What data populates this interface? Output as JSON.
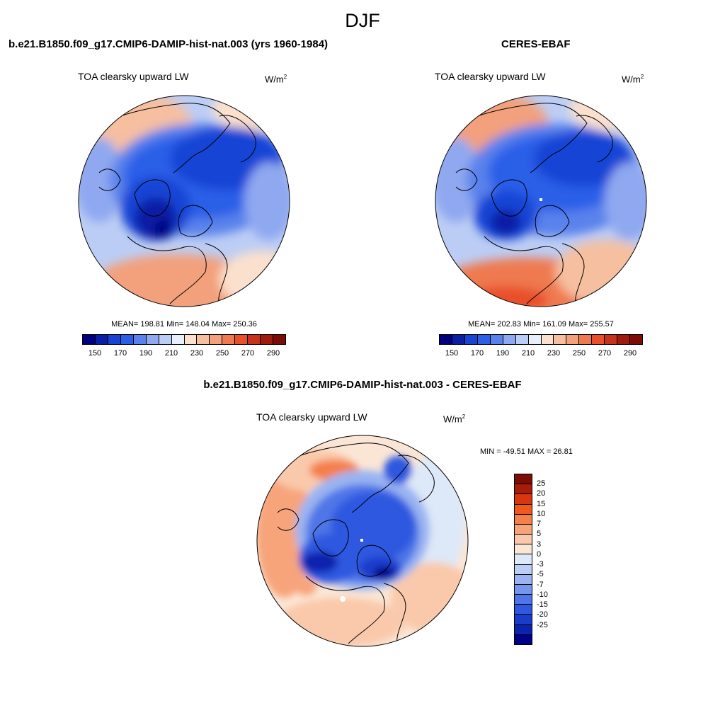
{
  "figure": {
    "title": "DJF"
  },
  "panels": {
    "model": {
      "title": "b.e21.B1850.f09_g17.CMIP6-DAMIP-hist-nat.003 (yrs 1960-1984)",
      "variable": "TOA clearsky upward LW",
      "units_base": "W/m",
      "units_exp": "2",
      "stats": "MEAN= 198.81  Min= 148.04  Max= 250.36"
    },
    "obs": {
      "title": "CERES-EBAF",
      "variable": "TOA clearsky upward LW",
      "units_base": "W/m",
      "units_exp": "2",
      "stats": "MEAN= 202.83  Min= 161.09  Max= 255.57"
    },
    "diff": {
      "title": "b.e21.B1850.f09_g17.CMIP6-DAMIP-hist-nat.003 - CERES-EBAF",
      "variable": "TOA clearsky upward LW",
      "units_base": "W/m",
      "units_exp": "2",
      "stats": "MIN = -49.51 MAX =  26.81"
    }
  },
  "colorbars": {
    "abs": {
      "colors": [
        "#00007f",
        "#0a1fa5",
        "#1844d6",
        "#2a5fe8",
        "#5a82ec",
        "#8fa8f0",
        "#bccdf5",
        "#e8eefb",
        "#fbe0cd",
        "#f6bfa0",
        "#f3a07c",
        "#ef7a50",
        "#e8502a",
        "#c8321a",
        "#a01b0c",
        "#7d0c05"
      ],
      "ticks": [
        "150",
        "170",
        "190",
        "210",
        "230",
        "250",
        "270",
        "290"
      ]
    },
    "diff": {
      "colors": [
        "#7d0c05",
        "#a81c0a",
        "#d8360f",
        "#f0581e",
        "#f4804c",
        "#f7a47a",
        "#fac9ab",
        "#fbe6d6",
        "#dde8f8",
        "#bccef5",
        "#9ab4f1",
        "#7496ec",
        "#4f76e8",
        "#2e58e0",
        "#1a3ccc",
        "#0c23ad",
        "#000088"
      ],
      "ticks": [
        "25",
        "20",
        "15",
        "10",
        "7",
        "5",
        "3",
        "0",
        "-3",
        "-5",
        "-7",
        "-10",
        "-15",
        "-20",
        "-25"
      ]
    }
  }
}
